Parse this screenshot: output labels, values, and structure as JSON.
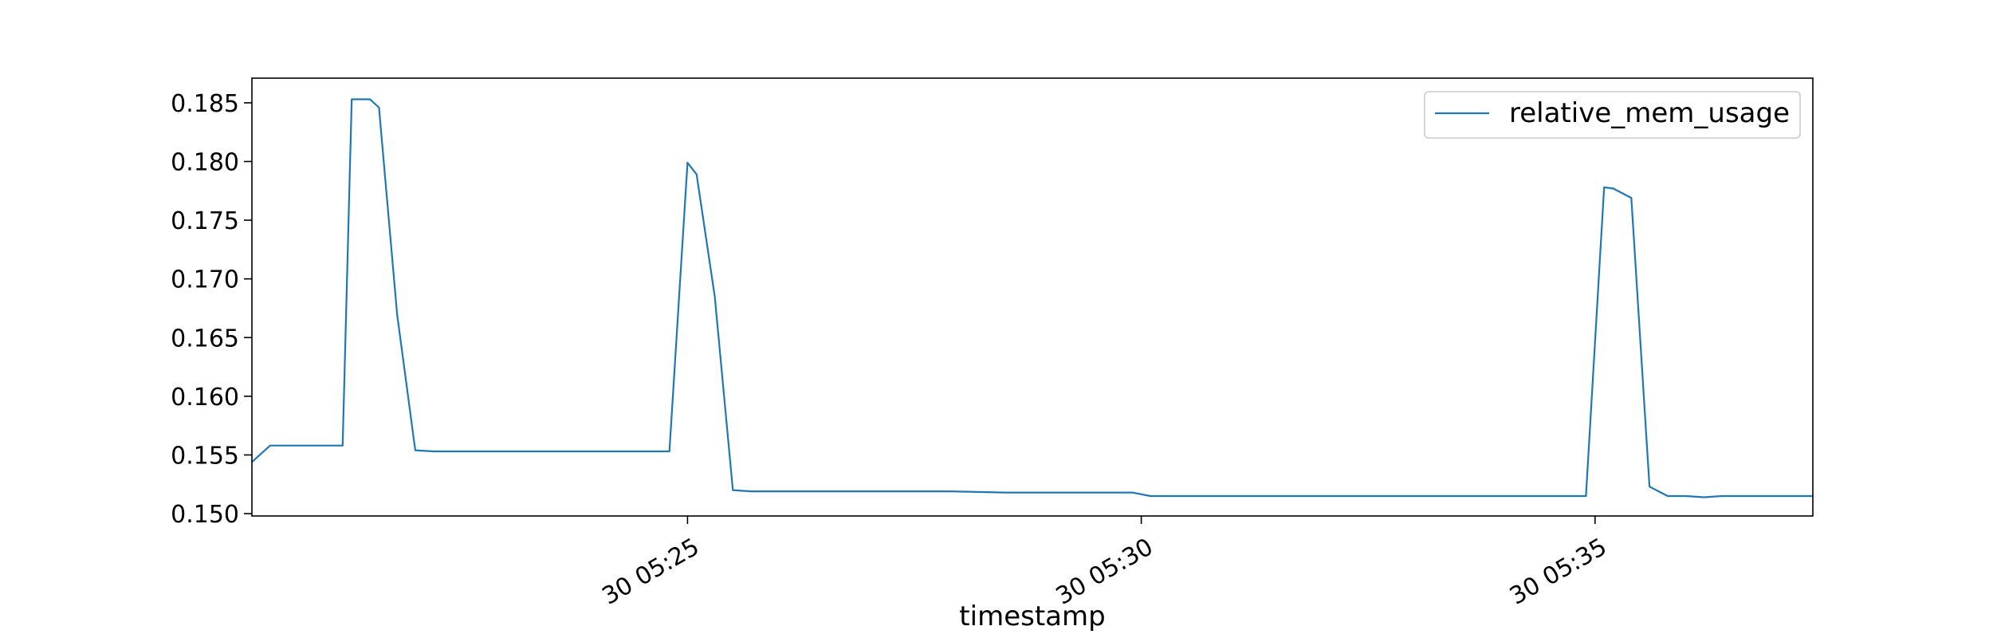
{
  "chart_data": {
    "type": "line",
    "xlabel": "timestamp",
    "ylabel": "",
    "x_unit": "minutes",
    "xlim": [
      "05:20:12",
      "05:37:24"
    ],
    "ylim": [
      0.1498,
      0.1871
    ],
    "grid": false,
    "legend_placement": "top-right",
    "x_ticks": [
      {
        "value": "05:25:00",
        "label": "30 05:25"
      },
      {
        "value": "05:30:00",
        "label": "30 05:30"
      },
      {
        "value": "05:35:00",
        "label": "30 05:35"
      }
    ],
    "y_ticks": [
      {
        "value": 0.15,
        "label": "0.150"
      },
      {
        "value": 0.155,
        "label": "0.155"
      },
      {
        "value": 0.16,
        "label": "0.160"
      },
      {
        "value": 0.165,
        "label": "0.165"
      },
      {
        "value": 0.17,
        "label": "0.170"
      },
      {
        "value": 0.175,
        "label": "0.175"
      },
      {
        "value": 0.18,
        "label": "0.180"
      },
      {
        "value": 0.185,
        "label": "0.185"
      }
    ],
    "series": [
      {
        "name": "relative_mem_usage",
        "color": "#1f77b4",
        "points": [
          [
            "05:20:12",
            0.1544
          ],
          [
            "05:20:24",
            0.1558
          ],
          [
            "05:20:36",
            0.1558
          ],
          [
            "05:20:48",
            0.1558
          ],
          [
            "05:21:00",
            0.1558
          ],
          [
            "05:21:12",
            0.1558
          ],
          [
            "05:21:18",
            0.1853
          ],
          [
            "05:21:30",
            0.1853
          ],
          [
            "05:21:36",
            0.1846
          ],
          [
            "05:21:48",
            0.167
          ],
          [
            "05:22:00",
            0.1554
          ],
          [
            "05:22:12",
            0.1553
          ],
          [
            "05:22:36",
            0.1553
          ],
          [
            "05:23:00",
            0.1553
          ],
          [
            "05:23:24",
            0.1553
          ],
          [
            "05:23:48",
            0.1553
          ],
          [
            "05:24:12",
            0.1553
          ],
          [
            "05:24:36",
            0.1553
          ],
          [
            "05:24:48",
            0.1553
          ],
          [
            "05:25:00",
            0.1799
          ],
          [
            "05:25:06",
            0.1789
          ],
          [
            "05:25:18",
            0.1685
          ],
          [
            "05:25:30",
            0.152
          ],
          [
            "05:25:42",
            0.1519
          ],
          [
            "05:26:06",
            0.1519
          ],
          [
            "05:26:42",
            0.1519
          ],
          [
            "05:27:18",
            0.1519
          ],
          [
            "05:27:54",
            0.1519
          ],
          [
            "05:28:30",
            0.1518
          ],
          [
            "05:29:06",
            0.1518
          ],
          [
            "05:29:42",
            0.1518
          ],
          [
            "05:29:54",
            0.1518
          ],
          [
            "05:30:06",
            0.1515
          ],
          [
            "05:30:30",
            0.1515
          ],
          [
            "05:31:06",
            0.1515
          ],
          [
            "05:31:42",
            0.1515
          ],
          [
            "05:32:18",
            0.1515
          ],
          [
            "05:32:54",
            0.1515
          ],
          [
            "05:33:30",
            0.1515
          ],
          [
            "05:34:06",
            0.1515
          ],
          [
            "05:34:42",
            0.1515
          ],
          [
            "05:34:54",
            0.1515
          ],
          [
            "05:35:06",
            0.1778
          ],
          [
            "05:35:12",
            0.1777
          ],
          [
            "05:35:24",
            0.1769
          ],
          [
            "05:35:36",
            0.1523
          ],
          [
            "05:35:48",
            0.1515
          ],
          [
            "05:36:00",
            0.1515
          ],
          [
            "05:36:12",
            0.1514
          ],
          [
            "05:36:24",
            0.1515
          ],
          [
            "05:36:48",
            0.1515
          ],
          [
            "05:37:06",
            0.1515
          ],
          [
            "05:37:24",
            0.1515
          ]
        ]
      }
    ]
  }
}
